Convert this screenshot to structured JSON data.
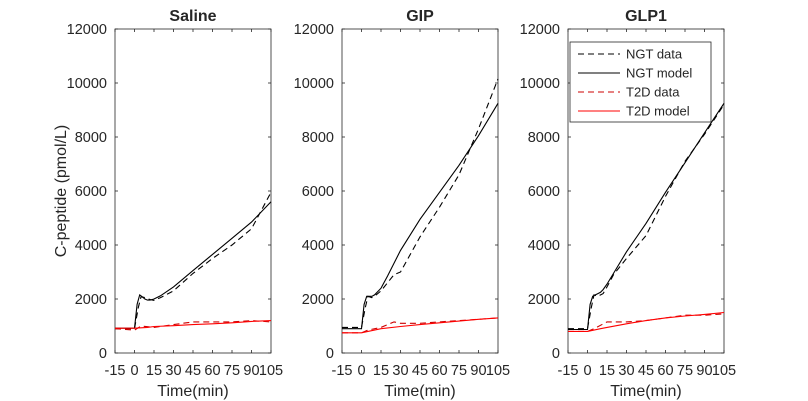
{
  "chart_data": {
    "type": "line",
    "ylabel": "C-peptide (pmol/L)",
    "xlabel": "Time(min)",
    "xlim": [
      -15,
      105
    ],
    "ylim": [
      0,
      12000
    ],
    "xticks": [
      -15,
      0,
      15,
      30,
      45,
      60,
      75,
      90,
      105
    ],
    "yticks": [
      0,
      2000,
      4000,
      6000,
      8000,
      10000,
      12000
    ],
    "xtick_labels": [
      "-15",
      "0",
      "15",
      "30",
      "45",
      "60",
      "75",
      "90",
      "105"
    ],
    "ytick_labels": [
      "0",
      "2000",
      "4000",
      "6000",
      "8000",
      "10000",
      "12000"
    ],
    "grid": false,
    "legend": {
      "location": "top-right",
      "entries": [
        {
          "label": "NGT data",
          "color": "#000000",
          "dash": true
        },
        {
          "label": "NGT model",
          "color": "#000000",
          "dash": false
        },
        {
          "label": "T2D data",
          "color": "#cc0000",
          "dash": true
        },
        {
          "label": "T2D model",
          "color": "#ff0000",
          "dash": false
        }
      ]
    },
    "panels": [
      {
        "title": "Saline",
        "show_legend": false,
        "series": [
          {
            "name": "NGT data",
            "color": "#000000",
            "dash": true,
            "x": [
              -15,
              0,
              3,
              5,
              8,
              12,
              15,
              20,
              30,
              45,
              60,
              75,
              90,
              105
            ],
            "y": [
              900,
              900,
              1700,
              2080,
              2050,
              1980,
              1950,
              2050,
              2300,
              2950,
              3500,
              4000,
              4600,
              5950
            ]
          },
          {
            "name": "NGT model",
            "color": "#000000",
            "dash": false,
            "x": [
              -15,
              0,
              2,
              4,
              6,
              8,
              10,
              12,
              15,
              20,
              30,
              45,
              60,
              75,
              90,
              105
            ],
            "y": [
              920,
              920,
              1800,
              2150,
              2080,
              2000,
              1960,
              1960,
              2000,
              2120,
              2450,
              3050,
              3650,
              4250,
              4850,
              5600
            ]
          },
          {
            "name": "T2D data",
            "color": "#cc0000",
            "dash": true,
            "x": [
              -15,
              0,
              5,
              15,
              30,
              45,
              60,
              75,
              90,
              105
            ],
            "y": [
              900,
              850,
              1000,
              950,
              1050,
              1150,
              1150,
              1150,
              1200,
              1150
            ]
          },
          {
            "name": "T2D model",
            "color": "#ff0000",
            "dash": false,
            "x": [
              -15,
              0,
              10,
              15,
              30,
              45,
              60,
              75,
              90,
              105
            ],
            "y": [
              920,
              920,
              950,
              980,
              1010,
              1050,
              1080,
              1120,
              1170,
              1200
            ]
          }
        ]
      },
      {
        "title": "GIP",
        "show_legend": false,
        "series": [
          {
            "name": "NGT data",
            "color": "#000000",
            "dash": true,
            "x": [
              -15,
              0,
              3,
              5,
              8,
              10,
              15,
              20,
              25,
              30,
              45,
              60,
              75,
              90,
              105
            ],
            "y": [
              950,
              950,
              1700,
              2100,
              2050,
              2100,
              2300,
              2600,
              2900,
              3000,
              4300,
              5400,
              6600,
              8300,
              10150
            ]
          },
          {
            "name": "NGT model",
            "color": "#000000",
            "dash": false,
            "x": [
              -15,
              0,
              2,
              4,
              6,
              8,
              10,
              12,
              15,
              20,
              30,
              45,
              60,
              75,
              90,
              105
            ],
            "y": [
              900,
              900,
              1800,
              2100,
              2100,
              2100,
              2150,
              2250,
              2400,
              2850,
              3800,
              4950,
              5950,
              6950,
              8050,
              9250
            ]
          },
          {
            "name": "T2D data",
            "color": "#cc0000",
            "dash": true,
            "x": [
              -15,
              0,
              5,
              15,
              25,
              30,
              45,
              60,
              75,
              90,
              105
            ],
            "y": [
              750,
              750,
              850,
              950,
              1150,
              1100,
              1100,
              1150,
              1200,
              1250,
              1300
            ]
          },
          {
            "name": "T2D model",
            "color": "#ff0000",
            "dash": false,
            "x": [
              -15,
              0,
              10,
              15,
              30,
              45,
              60,
              75,
              90,
              105
            ],
            "y": [
              750,
              750,
              850,
              900,
              980,
              1050,
              1120,
              1180,
              1250,
              1300
            ]
          }
        ]
      },
      {
        "title": "GLP1",
        "show_legend": true,
        "series": [
          {
            "name": "NGT data",
            "color": "#000000",
            "dash": true,
            "x": [
              -15,
              0,
              3,
              5,
              8,
              12,
              15,
              20,
              30,
              45,
              60,
              75,
              90,
              105
            ],
            "y": [
              900,
              900,
              1700,
              2150,
              2100,
              2200,
              2450,
              2900,
              3500,
              4350,
              5800,
              7100,
              8100,
              9200
            ]
          },
          {
            "name": "NGT model",
            "color": "#000000",
            "dash": false,
            "x": [
              -15,
              0,
              2,
              4,
              6,
              8,
              10,
              12,
              15,
              20,
              30,
              45,
              60,
              75,
              90,
              105
            ],
            "y": [
              870,
              870,
              1800,
              2100,
              2150,
              2200,
              2250,
              2350,
              2550,
              2950,
              3750,
              4800,
              5950,
              7050,
              8150,
              9250
            ]
          },
          {
            "name": "T2D data",
            "color": "#cc0000",
            "dash": true,
            "x": [
              -15,
              0,
              5,
              15,
              30,
              45,
              60,
              75,
              90,
              105
            ],
            "y": [
              800,
              800,
              900,
              1150,
              1150,
              1200,
              1300,
              1400,
              1400,
              1450
            ]
          },
          {
            "name": "T2D model",
            "color": "#ff0000",
            "dash": false,
            "x": [
              -15,
              0,
              10,
              15,
              30,
              45,
              60,
              75,
              90,
              105
            ],
            "y": [
              800,
              800,
              900,
              950,
              1080,
              1200,
              1300,
              1370,
              1430,
              1500
            ]
          }
        ]
      }
    ]
  }
}
